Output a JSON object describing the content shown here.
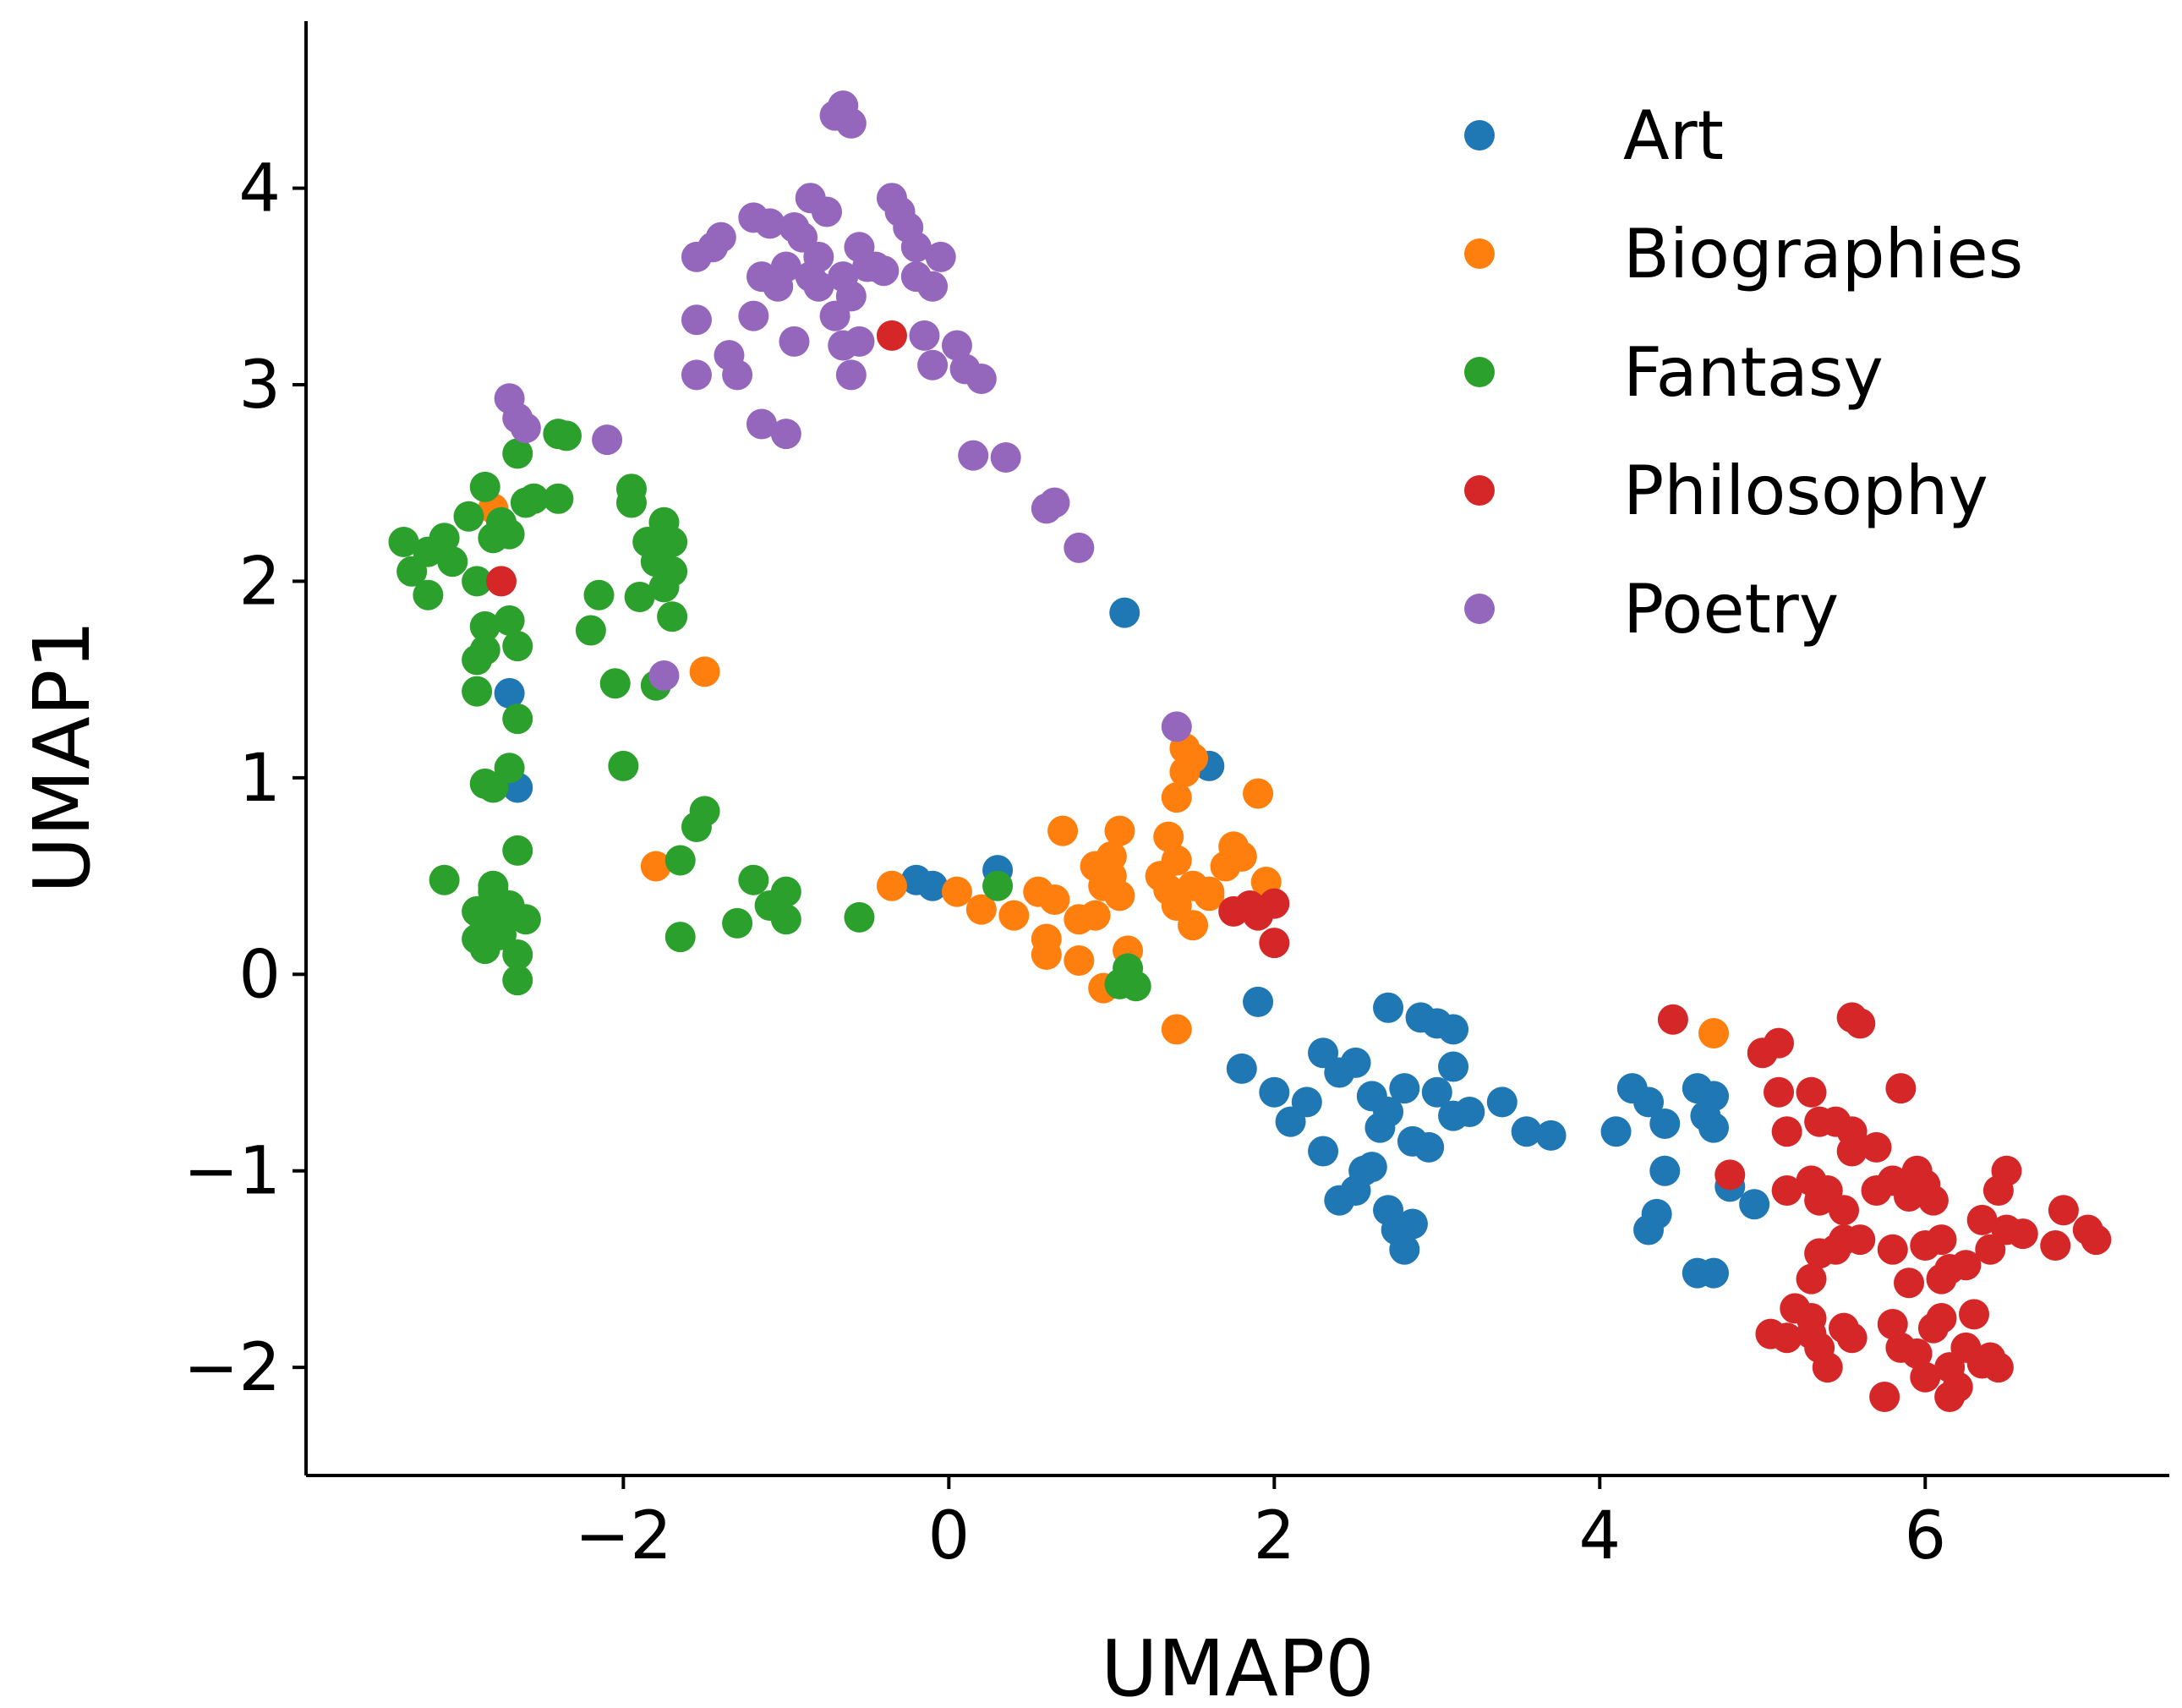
{
  "chart_data": {
    "type": "scatter",
    "xlabel": "UMAP0",
    "ylabel": "UMAP1",
    "xlim": [
      -3.95,
      7.5
    ],
    "ylim": [
      -2.55,
      4.85
    ],
    "xticks": [
      -2,
      0,
      2,
      4,
      6
    ],
    "yticks": [
      -2,
      -1,
      0,
      1,
      2,
      3,
      4
    ],
    "legend_position": "top-right",
    "grid": false,
    "series": [
      {
        "name": "Art",
        "color": "#1f77b4",
        "points": [
          [
            -2.7,
            1.43
          ],
          [
            -2.65,
            0.95
          ],
          [
            1.08,
            1.84
          ],
          [
            1.6,
            1.06
          ],
          [
            0.3,
            0.53
          ],
          [
            -0.2,
            0.48
          ],
          [
            -0.1,
            0.45
          ],
          [
            1.9,
            -0.14
          ],
          [
            2.7,
            -0.17
          ],
          [
            2.9,
            -0.22
          ],
          [
            3.0,
            -0.25
          ],
          [
            3.1,
            -0.28
          ],
          [
            3.1,
            -0.47
          ],
          [
            1.8,
            -0.48
          ],
          [
            2.0,
            -0.6
          ],
          [
            2.3,
            -0.4
          ],
          [
            2.4,
            -0.5
          ],
          [
            2.5,
            -0.45
          ],
          [
            2.2,
            -0.65
          ],
          [
            2.1,
            -0.75
          ],
          [
            2.6,
            -0.62
          ],
          [
            2.8,
            -0.58
          ],
          [
            2.7,
            -0.7
          ],
          [
            2.65,
            -0.78
          ],
          [
            3.0,
            -0.6
          ],
          [
            3.1,
            -0.72
          ],
          [
            3.2,
            -0.7
          ],
          [
            3.4,
            -0.65
          ],
          [
            3.55,
            -0.8
          ],
          [
            3.7,
            -0.82
          ],
          [
            2.3,
            -0.9
          ],
          [
            2.55,
            -1.0
          ],
          [
            2.6,
            -0.98
          ],
          [
            2.5,
            -1.1
          ],
          [
            2.4,
            -1.15
          ],
          [
            2.7,
            -1.2
          ],
          [
            2.75,
            -1.3
          ],
          [
            2.8,
            -1.4
          ],
          [
            2.85,
            -1.27
          ],
          [
            2.85,
            -0.85
          ],
          [
            2.95,
            -0.88
          ],
          [
            4.1,
            -0.8
          ],
          [
            4.2,
            -0.58
          ],
          [
            4.3,
            -0.65
          ],
          [
            4.4,
            -0.76
          ],
          [
            4.6,
            -0.58
          ],
          [
            4.7,
            -0.62
          ],
          [
            4.65,
            -0.72
          ],
          [
            4.7,
            -0.78
          ],
          [
            4.4,
            -1.0
          ],
          [
            4.35,
            -1.22
          ],
          [
            4.3,
            -1.3
          ],
          [
            4.8,
            -1.08
          ],
          [
            4.95,
            -1.17
          ],
          [
            4.6,
            -1.52
          ],
          [
            4.7,
            -1.52
          ]
        ]
      },
      {
        "name": "Biographies",
        "color": "#ff7f0e",
        "points": [
          [
            -2.8,
            2.37
          ],
          [
            -1.5,
            1.54
          ],
          [
            -1.8,
            0.55
          ],
          [
            -0.35,
            0.45
          ],
          [
            0.05,
            0.42
          ],
          [
            0.2,
            0.33
          ],
          [
            0.4,
            0.3
          ],
          [
            0.55,
            0.42
          ],
          [
            0.65,
            0.38
          ],
          [
            0.6,
            0.18
          ],
          [
            0.6,
            0.1
          ],
          [
            0.8,
            0.28
          ],
          [
            0.8,
            0.07
          ],
          [
            0.9,
            0.3
          ],
          [
            0.9,
            0.55
          ],
          [
            0.95,
            0.45
          ],
          [
            1.0,
            0.6
          ],
          [
            1.0,
            0.5
          ],
          [
            1.05,
            0.73
          ],
          [
            1.05,
            0.4
          ],
          [
            1.1,
            0.12
          ],
          [
            0.95,
            -0.07
          ],
          [
            0.7,
            0.73
          ],
          [
            1.3,
            0.5
          ],
          [
            1.35,
            0.43
          ],
          [
            1.4,
            0.35
          ],
          [
            1.5,
            0.25
          ],
          [
            1.5,
            0.45
          ],
          [
            1.6,
            0.42
          ],
          [
            1.7,
            0.55
          ],
          [
            1.75,
            0.65
          ],
          [
            1.8,
            0.6
          ],
          [
            1.35,
            0.7
          ],
          [
            1.4,
            0.58
          ],
          [
            1.4,
            0.9
          ],
          [
            1.45,
            1.03
          ],
          [
            1.5,
            1.1
          ],
          [
            1.45,
            1.15
          ],
          [
            1.9,
            0.92
          ],
          [
            1.95,
            0.47
          ],
          [
            1.6,
            0.4
          ],
          [
            1.4,
            -0.28
          ],
          [
            4.7,
            -0.3
          ]
        ]
      },
      {
        "name": "Fantasy",
        "color": "#2ca02c",
        "points": [
          [
            -3.35,
            2.2
          ],
          [
            -3.3,
            2.05
          ],
          [
            -3.2,
            2.15
          ],
          [
            -3.1,
            2.22
          ],
          [
            -3.05,
            2.1
          ],
          [
            -2.95,
            2.33
          ],
          [
            -3.2,
            1.93
          ],
          [
            -2.85,
            2.48
          ],
          [
            -2.9,
            2.0
          ],
          [
            -2.8,
            2.22
          ],
          [
            -2.75,
            2.3
          ],
          [
            -2.7,
            2.24
          ],
          [
            -2.6,
            2.4
          ],
          [
            -2.55,
            2.42
          ],
          [
            -2.4,
            2.75
          ],
          [
            -2.35,
            2.74
          ],
          [
            -2.4,
            2.42
          ],
          [
            -2.65,
            2.65
          ],
          [
            -2.85,
            1.77
          ],
          [
            -2.9,
            1.6
          ],
          [
            -2.85,
            1.65
          ],
          [
            -2.7,
            1.8
          ],
          [
            -2.65,
            1.67
          ],
          [
            -2.9,
            1.44
          ],
          [
            -2.65,
            1.3
          ],
          [
            -2.7,
            1.05
          ],
          [
            -2.85,
            0.97
          ],
          [
            -2.8,
            0.95
          ],
          [
            -2.15,
            1.93
          ],
          [
            -2.2,
            1.75
          ],
          [
            -2.05,
            1.48
          ],
          [
            -1.95,
            2.47
          ],
          [
            -1.95,
            2.4
          ],
          [
            -1.9,
            1.92
          ],
          [
            -1.85,
            2.2
          ],
          [
            -1.8,
            2.1
          ],
          [
            -1.75,
            2.3
          ],
          [
            -1.7,
            2.2
          ],
          [
            -1.7,
            2.05
          ],
          [
            -1.75,
            1.97
          ],
          [
            -1.7,
            1.82
          ],
          [
            -1.8,
            1.47
          ],
          [
            -2.0,
            1.06
          ],
          [
            -1.5,
            0.83
          ],
          [
            -1.55,
            0.75
          ],
          [
            -1.65,
            0.58
          ],
          [
            -1.65,
            0.19
          ],
          [
            -1.2,
            0.48
          ],
          [
            -1.0,
            0.42
          ],
          [
            -1.1,
            0.35
          ],
          [
            -1.0,
            0.28
          ],
          [
            -1.3,
            0.26
          ],
          [
            -0.55,
            0.29
          ],
          [
            0.3,
            0.45
          ],
          [
            1.1,
            0.03
          ],
          [
            1.15,
            -0.06
          ],
          [
            1.05,
            -0.05
          ],
          [
            -3.1,
            0.48
          ],
          [
            -2.9,
            0.32
          ],
          [
            -2.85,
            0.25
          ],
          [
            -2.8,
            0.45
          ],
          [
            -2.75,
            0.3
          ],
          [
            -2.7,
            0.35
          ],
          [
            -2.9,
            0.18
          ],
          [
            -2.85,
            0.13
          ],
          [
            -2.65,
            0.1
          ],
          [
            -2.6,
            0.28
          ],
          [
            -2.65,
            -0.03
          ],
          [
            -2.8,
            0.42
          ],
          [
            -2.65,
            0.63
          ],
          [
            -2.75,
            0.24
          ],
          [
            -2.75,
            0.2
          ]
        ]
      },
      {
        "name": "Philosophy",
        "color": "#d62728",
        "points": [
          [
            -2.75,
            2.0
          ],
          [
            -0.35,
            3.25
          ],
          [
            1.75,
            0.32
          ],
          [
            1.85,
            0.35
          ],
          [
            1.9,
            0.3
          ],
          [
            2.0,
            0.36
          ],
          [
            2.0,
            0.16
          ],
          [
            4.45,
            -0.23
          ],
          [
            5.0,
            -0.4
          ],
          [
            5.1,
            -0.35
          ],
          [
            5.1,
            -0.6
          ],
          [
            5.15,
            -0.8
          ],
          [
            5.3,
            -0.6
          ],
          [
            5.35,
            -0.75
          ],
          [
            5.45,
            -0.75
          ],
          [
            5.55,
            -0.8
          ],
          [
            5.55,
            -0.22
          ],
          [
            5.6,
            -0.25
          ],
          [
            5.85,
            -0.58
          ],
          [
            5.55,
            -0.9
          ],
          [
            5.7,
            -0.88
          ],
          [
            4.8,
            -1.02
          ],
          [
            5.15,
            -1.1
          ],
          [
            5.3,
            -1.05
          ],
          [
            5.35,
            -1.15
          ],
          [
            5.4,
            -1.1
          ],
          [
            5.5,
            -1.2
          ],
          [
            5.45,
            -1.4
          ],
          [
            5.5,
            -1.35
          ],
          [
            5.6,
            -1.35
          ],
          [
            5.7,
            -1.1
          ],
          [
            5.8,
            -1.05
          ],
          [
            5.9,
            -1.13
          ],
          [
            5.95,
            -1.0
          ],
          [
            6.0,
            -1.07
          ],
          [
            6.05,
            -1.15
          ],
          [
            6.1,
            -1.35
          ],
          [
            6.0,
            -1.38
          ],
          [
            5.8,
            -1.4
          ],
          [
            5.9,
            -1.57
          ],
          [
            6.15,
            -1.5
          ],
          [
            6.25,
            -1.48
          ],
          [
            6.1,
            -1.55
          ],
          [
            6.35,
            -1.25
          ],
          [
            6.45,
            -1.1
          ],
          [
            6.5,
            -1.0
          ],
          [
            6.5,
            -1.3
          ],
          [
            6.6,
            -1.32
          ],
          [
            6.8,
            -1.38
          ],
          [
            6.85,
            -1.2
          ],
          [
            7.0,
            -1.3
          ],
          [
            7.05,
            -1.35
          ],
          [
            6.4,
            -1.4
          ],
          [
            5.35,
            -1.42
          ],
          [
            5.3,
            -1.55
          ],
          [
            5.2,
            -1.7
          ],
          [
            5.15,
            -1.85
          ],
          [
            5.05,
            -1.83
          ],
          [
            5.3,
            -1.75
          ],
          [
            5.35,
            -1.9
          ],
          [
            5.4,
            -2.0
          ],
          [
            5.5,
            -1.8
          ],
          [
            5.55,
            -1.85
          ],
          [
            5.8,
            -1.78
          ],
          [
            5.85,
            -1.9
          ],
          [
            5.95,
            -1.93
          ],
          [
            6.0,
            -2.05
          ],
          [
            6.05,
            -1.8
          ],
          [
            6.1,
            -1.75
          ],
          [
            6.15,
            -2.0
          ],
          [
            6.2,
            -2.1
          ],
          [
            6.25,
            -1.9
          ],
          [
            6.3,
            -1.73
          ],
          [
            6.35,
            -1.98
          ],
          [
            6.4,
            -1.95
          ],
          [
            6.45,
            -2.0
          ],
          [
            6.15,
            -2.15
          ],
          [
            5.75,
            -2.15
          ],
          [
            5.3,
            -1.83
          ]
        ]
      },
      {
        "name": "Poetry",
        "color": "#9467bd",
        "points": [
          [
            -0.65,
            4.42
          ],
          [
            -0.7,
            4.37
          ],
          [
            -0.6,
            4.33
          ],
          [
            -1.55,
            3.65
          ],
          [
            -1.45,
            3.7
          ],
          [
            -1.4,
            3.75
          ],
          [
            -1.2,
            3.85
          ],
          [
            -1.1,
            3.82
          ],
          [
            -0.95,
            3.8
          ],
          [
            -0.85,
            3.95
          ],
          [
            -0.75,
            3.88
          ],
          [
            -0.9,
            3.75
          ],
          [
            -0.8,
            3.65
          ],
          [
            -0.65,
            3.55
          ],
          [
            -0.55,
            3.7
          ],
          [
            -0.45,
            3.6
          ],
          [
            -0.35,
            3.95
          ],
          [
            -0.3,
            3.88
          ],
          [
            -0.25,
            3.8
          ],
          [
            -0.2,
            3.7
          ],
          [
            -0.1,
            3.5
          ],
          [
            -0.05,
            3.65
          ],
          [
            -0.2,
            3.55
          ],
          [
            -0.4,
            3.58
          ],
          [
            -0.5,
            3.6
          ],
          [
            -0.6,
            3.45
          ],
          [
            -0.7,
            3.35
          ],
          [
            -0.8,
            3.5
          ],
          [
            -0.85,
            3.55
          ],
          [
            -1.0,
            3.6
          ],
          [
            -1.05,
            3.5
          ],
          [
            -1.15,
            3.55
          ],
          [
            -1.2,
            3.35
          ],
          [
            -1.55,
            3.33
          ],
          [
            -1.35,
            3.15
          ],
          [
            -1.3,
            3.05
          ],
          [
            -1.55,
            3.05
          ],
          [
            -0.95,
            3.22
          ],
          [
            -0.65,
            3.2
          ],
          [
            -0.6,
            3.05
          ],
          [
            -0.55,
            3.22
          ],
          [
            -0.15,
            3.25
          ],
          [
            -0.1,
            3.1
          ],
          [
            0.05,
            3.2
          ],
          [
            0.1,
            3.08
          ],
          [
            0.2,
            3.03
          ],
          [
            -1.15,
            2.8
          ],
          [
            -1.0,
            2.75
          ],
          [
            -2.7,
            2.93
          ],
          [
            -2.65,
            2.83
          ],
          [
            -2.6,
            2.78
          ],
          [
            -2.1,
            2.72
          ],
          [
            0.15,
            2.64
          ],
          [
            0.35,
            2.63
          ],
          [
            0.6,
            2.37
          ],
          [
            0.65,
            2.4
          ],
          [
            0.8,
            2.17
          ],
          [
            -1.75,
            1.52
          ],
          [
            1.4,
            1.26
          ]
        ]
      }
    ]
  }
}
